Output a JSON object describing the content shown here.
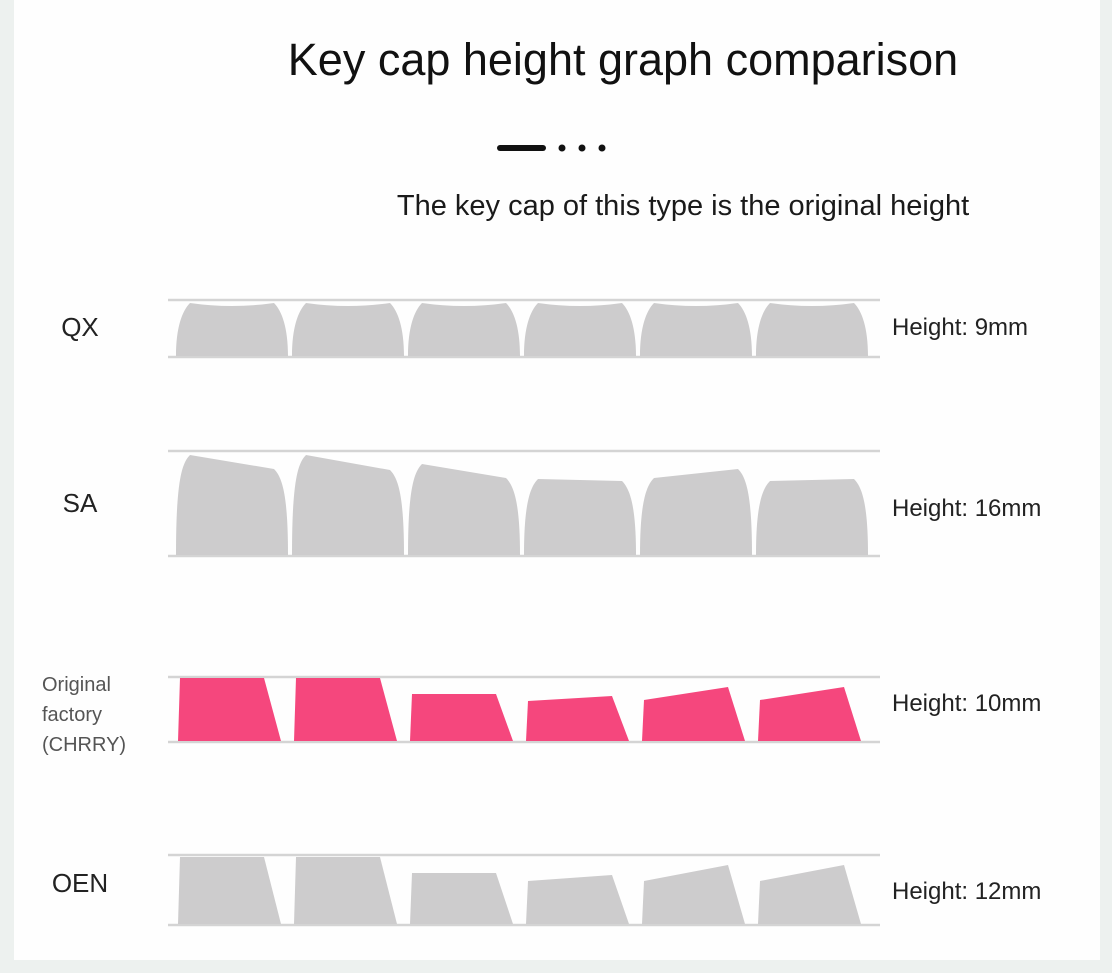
{
  "title": "Key cap height graph comparison",
  "divider_icon": "dash-dots-divider",
  "subtitle": "The key cap of this type is the original  height",
  "colors": {
    "gray_keycap": "#cdcccd",
    "highlight_keycap": "#f5477d",
    "guide_line": "#d4d4d4"
  },
  "rows": [
    {
      "name": "QX",
      "height": "Height: 9mm",
      "highlighted": false
    },
    {
      "name": "SA",
      "height": "Height: 16mm",
      "highlighted": false
    },
    {
      "name": "Original factory (CHRRY)",
      "name_lines": [
        "Original",
        "factory",
        "(CHRRY)"
      ],
      "height": "Height: 10mm",
      "highlighted": true
    },
    {
      "name": "OEN",
      "height": "Height: 12mm",
      "highlighted": false
    }
  ]
}
